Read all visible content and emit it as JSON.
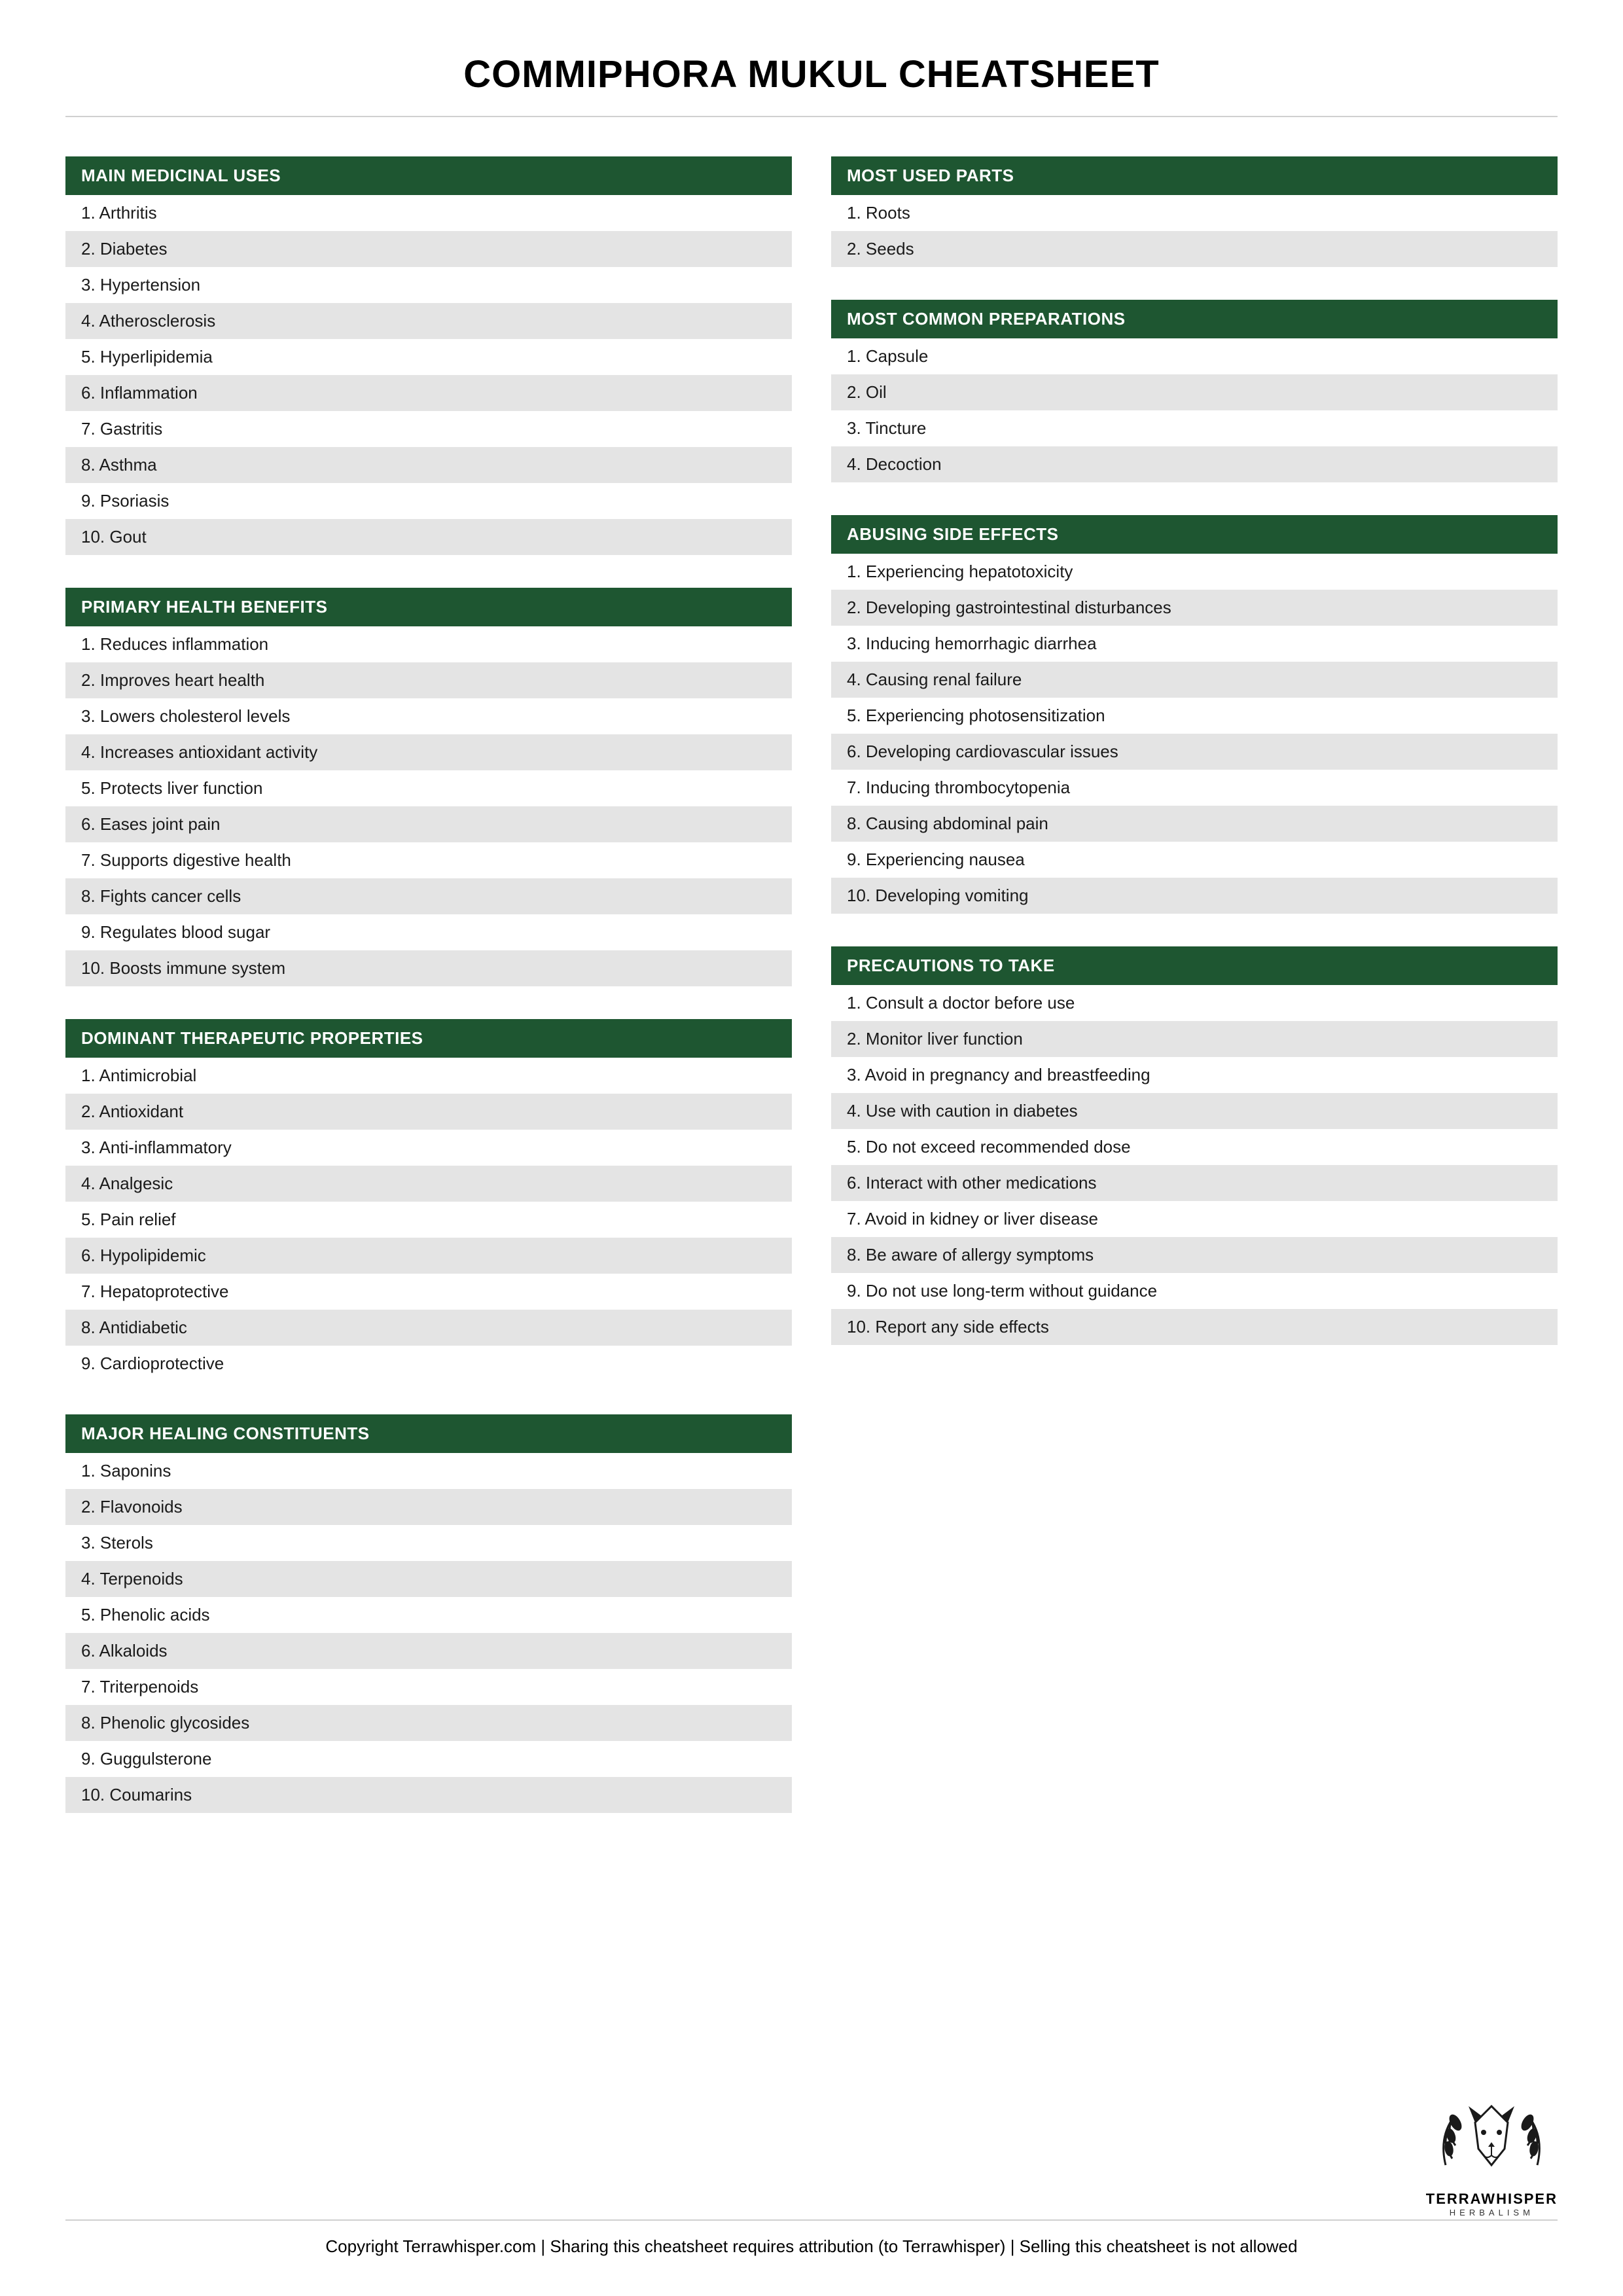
{
  "title": "COMMIPHORA MUKUL CHEATSHEET",
  "styling": {
    "header_bg": "#1e5631",
    "header_fg": "#ffffff",
    "row_odd_bg": "#ffffff",
    "row_even_bg": "#e4e4e4",
    "row_fg": "#1a1a1a",
    "page_bg": "#ffffff",
    "title_fontsize": 58,
    "header_fontsize": 26,
    "row_fontsize": 26,
    "divider_color": "#d0d0d0"
  },
  "left_sections": [
    {
      "header": "MAIN MEDICINAL USES",
      "items": [
        "Arthritis",
        "Diabetes",
        "Hypertension",
        "Atherosclerosis",
        "Hyperlipidemia",
        "Inflammation",
        "Gastritis",
        "Asthma",
        "Psoriasis",
        "Gout"
      ]
    },
    {
      "header": "PRIMARY HEALTH BENEFITS",
      "items": [
        "Reduces inflammation",
        "Improves heart health",
        "Lowers cholesterol levels",
        "Increases antioxidant activity",
        "Protects liver function",
        "Eases joint pain",
        "Supports digestive health",
        "Fights cancer cells",
        "Regulates blood sugar",
        "Boosts immune system"
      ]
    },
    {
      "header": "DOMINANT THERAPEUTIC PROPERTIES",
      "items": [
        "Antimicrobial",
        "Antioxidant",
        "Anti-inflammatory",
        "Analgesic",
        "Pain relief",
        "Hypolipidemic",
        "Hepatoprotective",
        "Antidiabetic",
        "Cardioprotective"
      ]
    },
    {
      "header": "MAJOR HEALING CONSTITUENTS",
      "items": [
        "Saponins",
        "Flavonoids",
        "Sterols",
        "Terpenoids",
        "Phenolic acids",
        "Alkaloids",
        "Triterpenoids",
        "Phenolic glycosides",
        "Guggulsterone",
        "Coumarins"
      ]
    }
  ],
  "right_sections": [
    {
      "header": "MOST USED PARTS",
      "items": [
        "Roots",
        "Seeds"
      ]
    },
    {
      "header": "MOST COMMON PREPARATIONS",
      "items": [
        "Capsule",
        "Oil",
        "Tincture",
        "Decoction"
      ]
    },
    {
      "header": "ABUSING SIDE EFFECTS",
      "items": [
        "Experiencing hepatotoxicity",
        "Developing gastrointestinal disturbances",
        "Inducing hemorrhagic diarrhea",
        "Causing renal failure",
        "Experiencing photosensitization",
        "Developing cardiovascular issues",
        "Inducing thrombocytopenia",
        "Causing abdominal pain",
        "Experiencing nausea",
        "Developing vomiting"
      ]
    },
    {
      "header": "PRECAUTIONS TO TAKE",
      "items": [
        "Consult a doctor before use",
        "Monitor liver function",
        "Avoid in pregnancy and breastfeeding",
        "Use with caution in diabetes",
        "Do not exceed recommended dose",
        "Interact with other medications",
        "Avoid in kidney or liver disease",
        "Be aware of allergy symptoms",
        "Do not use long-term without guidance",
        "Report any side effects"
      ]
    }
  ],
  "logo": {
    "name": "TERRAWHISPER",
    "sub": "HERBALISM"
  },
  "footer": "Copyright Terrawhisper.com | Sharing this cheatsheet requires attribution (to Terrawhisper) | Selling this cheatsheet is not allowed"
}
